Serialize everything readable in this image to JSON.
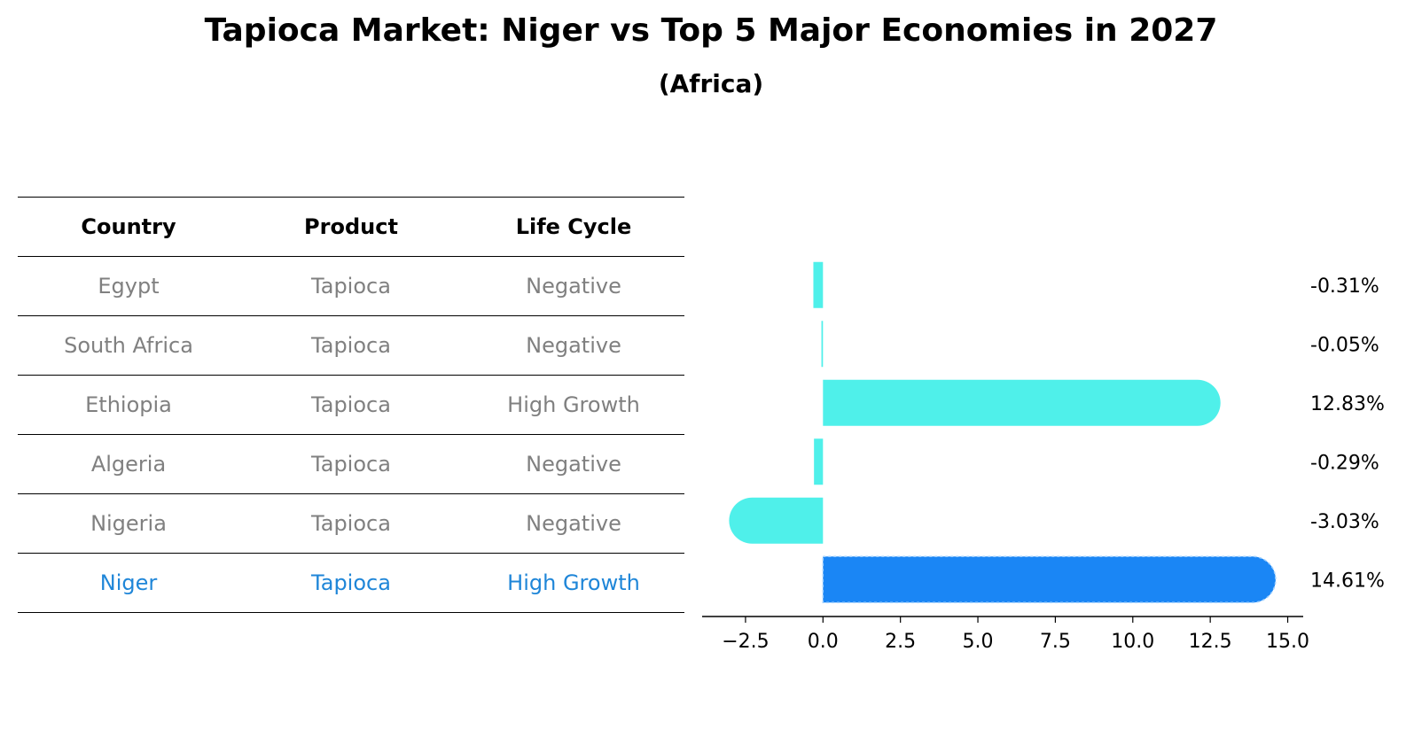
{
  "title": "Tapioca Market: Niger vs Top 5 Major Economies in 2027",
  "subtitle": "(Africa)",
  "table": {
    "headers": [
      "Country",
      "Product",
      "Life Cycle"
    ],
    "rows": [
      {
        "country": "Egypt",
        "product": "Tapioca",
        "life_cycle": "Negative"
      },
      {
        "country": "South Africa",
        "product": "Tapioca",
        "life_cycle": "Negative"
      },
      {
        "country": "Ethiopia",
        "product": "Tapioca",
        "life_cycle": "High Growth"
      },
      {
        "country": "Algeria",
        "product": "Tapioca",
        "life_cycle": "Negative"
      },
      {
        "country": "Nigeria",
        "product": "Tapioca",
        "life_cycle": "Negative"
      },
      {
        "country": "Niger",
        "product": "Tapioca",
        "life_cycle": "High Growth"
      }
    ]
  },
  "chart_data": {
    "type": "bar",
    "orientation": "horizontal",
    "categories": [
      "Egypt",
      "South Africa",
      "Ethiopia",
      "Algeria",
      "Nigeria",
      "Niger"
    ],
    "values": [
      -0.31,
      -0.05,
      12.83,
      -0.29,
      -3.03,
      14.61
    ],
    "value_labels": [
      "-0.31%",
      "-0.05%",
      "12.83%",
      "-0.29%",
      "-3.03%",
      "14.61%"
    ],
    "highlight_index": 5,
    "xlim": [
      -3.9,
      15.5
    ],
    "xticks": [
      -2.5,
      0.0,
      2.5,
      5.0,
      7.5,
      10.0,
      12.5,
      15.0
    ],
    "xtick_labels": [
      "−2.5",
      "0.0",
      "2.5",
      "5.0",
      "7.5",
      "10.0",
      "12.5",
      "15.0"
    ],
    "colors": {
      "default": "#4ff0ea",
      "highlight": "#1a86f5"
    }
  }
}
